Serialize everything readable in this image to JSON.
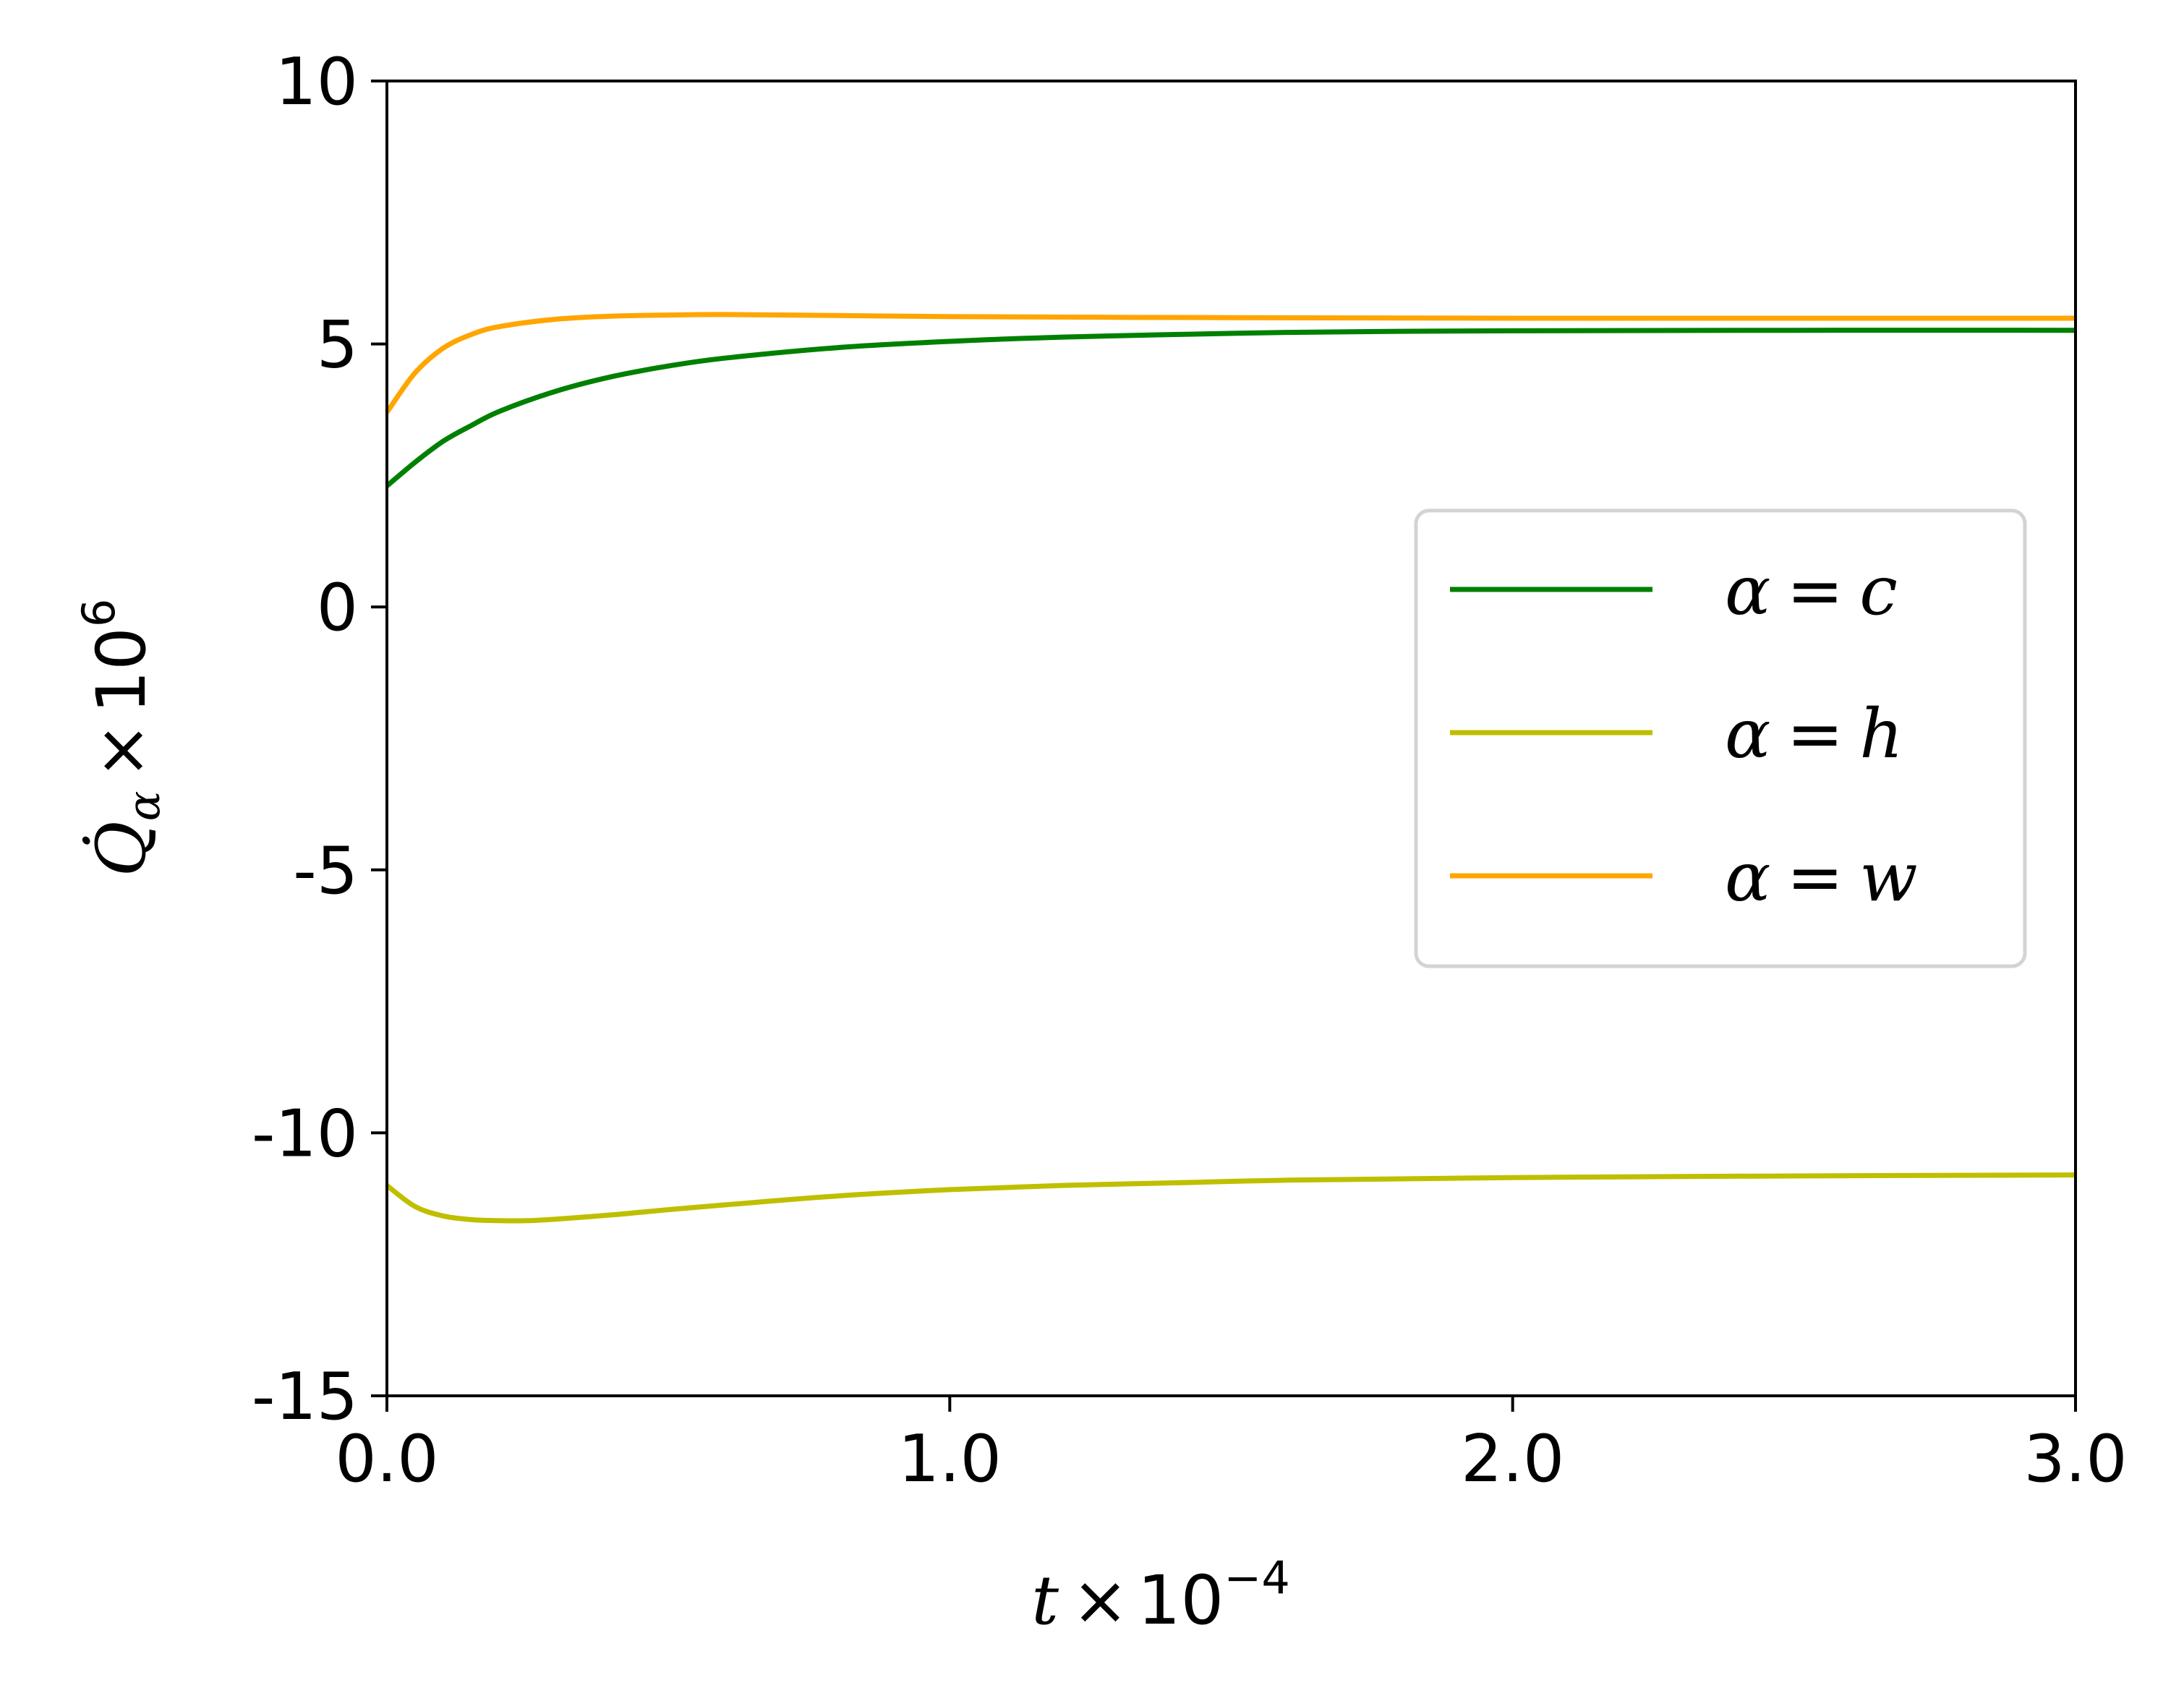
{
  "chart_data": {
    "type": "line",
    "xlabel": {
      "var": "t",
      "op": "×",
      "base": "10",
      "exp": "−4"
    },
    "ylabel": {
      "var": "Q̇",
      "sub": "α",
      "op": "×",
      "base": "10",
      "exp": "6"
    },
    "xlim": [
      0.0,
      3.0
    ],
    "ylim": [
      -15,
      10
    ],
    "xticks": [
      {
        "value": 0.0,
        "label": "0.0"
      },
      {
        "value": 1.0,
        "label": "1.0"
      },
      {
        "value": 2.0,
        "label": "2.0"
      },
      {
        "value": 3.0,
        "label": "3.0"
      }
    ],
    "yticks": [
      {
        "value": 10,
        "label": "10"
      },
      {
        "value": 5,
        "label": "5"
      },
      {
        "value": 0,
        "label": "0"
      },
      {
        "value": -5,
        "label": "-5"
      },
      {
        "value": -10,
        "label": "-10"
      },
      {
        "value": -15,
        "label": "-15"
      }
    ],
    "grid": false,
    "legend_position": "center-right",
    "series": [
      {
        "name": "α = c",
        "legend": {
          "greek": "α",
          "eq": "=",
          "letter": "c"
        },
        "color": "#008000",
        "x": [
          0.0,
          0.05,
          0.1,
          0.15,
          0.2,
          0.3,
          0.4,
          0.5,
          0.6,
          0.8,
          1.0,
          1.2,
          1.4,
          1.6,
          1.8,
          2.0,
          2.5,
          3.0
        ],
        "y": [
          2.3,
          2.75,
          3.15,
          3.45,
          3.72,
          4.1,
          4.38,
          4.58,
          4.73,
          4.93,
          5.05,
          5.13,
          5.18,
          5.22,
          5.24,
          5.25,
          5.26,
          5.26
        ]
      },
      {
        "name": "α = h",
        "legend": {
          "greek": "α",
          "eq": "=",
          "letter": "h"
        },
        "color": "#bfbf00",
        "x": [
          0.0,
          0.05,
          0.1,
          0.15,
          0.2,
          0.25,
          0.3,
          0.4,
          0.5,
          0.6,
          0.8,
          1.0,
          1.2,
          1.4,
          1.6,
          2.0,
          2.5,
          3.0
        ],
        "y": [
          -11.0,
          -11.4,
          -11.58,
          -11.65,
          -11.67,
          -11.67,
          -11.64,
          -11.56,
          -11.46,
          -11.37,
          -11.2,
          -11.08,
          -11.0,
          -10.95,
          -10.9,
          -10.85,
          -10.82,
          -10.8
        ]
      },
      {
        "name": "α = w",
        "legend": {
          "greek": "α",
          "eq": "=",
          "letter": "w"
        },
        "color": "#ffa500",
        "x": [
          0.0,
          0.05,
          0.1,
          0.15,
          0.2,
          0.3,
          0.4,
          0.5,
          0.6,
          0.8,
          1.0,
          1.5,
          2.0,
          2.5,
          3.0
        ],
        "y": [
          3.7,
          4.45,
          4.92,
          5.18,
          5.33,
          5.47,
          5.53,
          5.55,
          5.56,
          5.54,
          5.52,
          5.5,
          5.49,
          5.49,
          5.49
        ]
      }
    ]
  }
}
